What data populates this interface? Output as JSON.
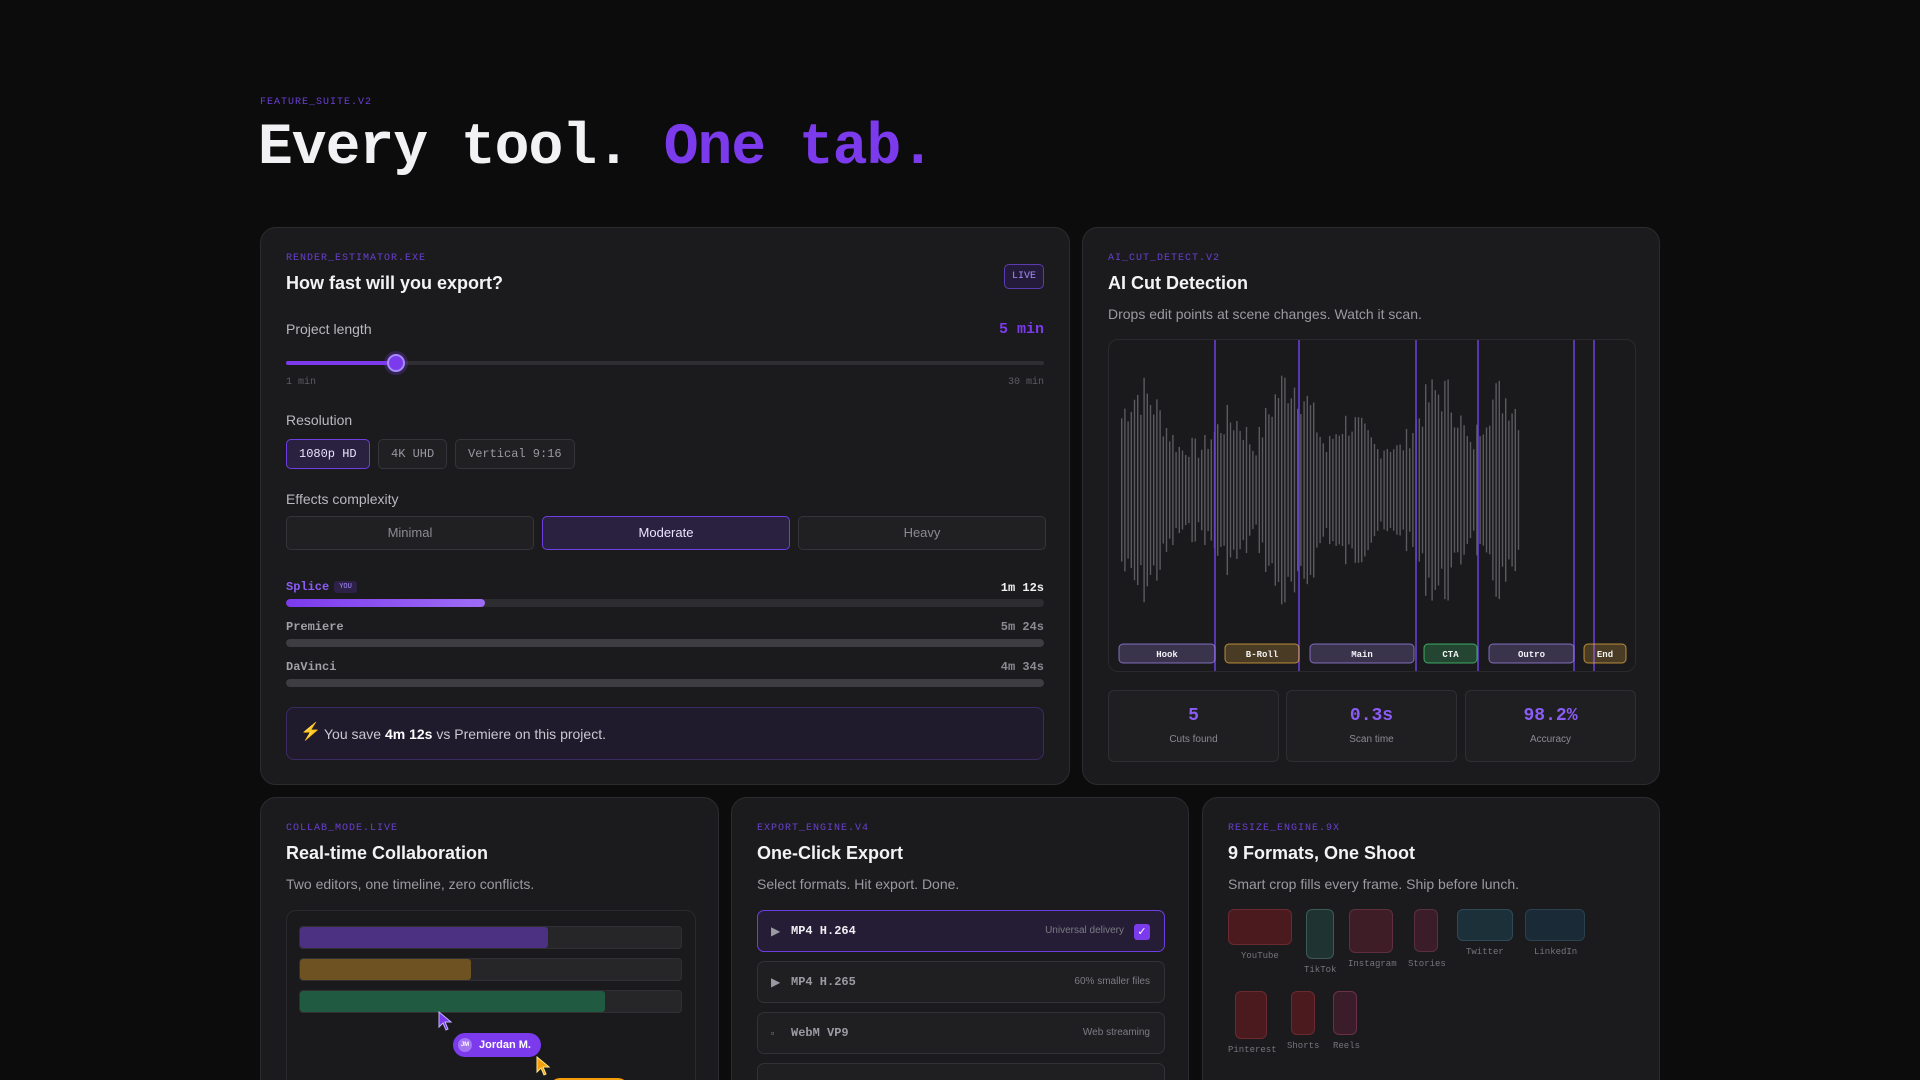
{
  "header": {
    "eyebrow": "FEATURE_SUITE.V2",
    "title_main": "Every tool.",
    "title_accent": "One tab."
  },
  "render": {
    "tag": "RENDER_ESTIMATOR.EXE",
    "title": "How fast will you export?",
    "badge": "LIVE",
    "length_label": "Project length",
    "length_value": "5 min",
    "slider_min": "1 min",
    "slider_max": "30 min",
    "slider_fraction": 0.145,
    "resolution_label": "Resolution",
    "resolutions": [
      "1080p HD",
      "4K UHD",
      "Vertical 9:16"
    ],
    "resolution_selected": "1080p HD",
    "effects_label": "Effects complexity",
    "effects": [
      "Minimal",
      "Moderate",
      "Heavy"
    ],
    "effects_selected": "Moderate",
    "results": [
      {
        "name": "Splice",
        "badge": "YOU",
        "time": "1m 12s",
        "fraction": 0.263
      },
      {
        "name": "Premiere",
        "time": "5m 24s",
        "fraction": 1.0
      },
      {
        "name": "DaVinci",
        "time": "4m 34s",
        "fraction": 1.0
      }
    ],
    "save": {
      "prefix": "You save",
      "amount": "4m 12s",
      "suffix": "vs Premiere on this project."
    }
  },
  "ai_cut": {
    "tag": "AI_CUT_DETECT.V2",
    "title": "AI Cut Detection",
    "subtitle": "Drops edit points at scene changes. Watch it scan.",
    "segments": [
      {
        "label": "Hook",
        "color": "#a78bfa"
      },
      {
        "label": "B-Roll",
        "color": "#f5b544"
      },
      {
        "label": "Main",
        "color": "#a78bfa"
      },
      {
        "label": "CTA",
        "color": "#4ade80"
      },
      {
        "label": "Outro",
        "color": "#a78bfa"
      },
      {
        "label": "End",
        "color": "#f5b544"
      }
    ],
    "stats": [
      {
        "value": "5",
        "label": "Cuts found"
      },
      {
        "value": "0.3s",
        "label": "Scan time"
      },
      {
        "value": "98.2%",
        "label": "Accuracy"
      }
    ]
  },
  "collab": {
    "tag": "COLLAB_MODE.LIVE",
    "title": "Real-time Collaboration",
    "subtitle": "Two editors, one timeline, zero conflicts.",
    "tracks": [
      {
        "fraction": 0.65,
        "color": "#4c3182"
      },
      {
        "fraction": 0.45,
        "color": "#6e5221"
      },
      {
        "fraction": 0.8,
        "color": "#1f5a41"
      }
    ],
    "user": {
      "initials": "JM",
      "name": "Jordan M."
    }
  },
  "export": {
    "tag": "EXPORT_ENGINE.V4",
    "title": "One-Click Export",
    "subtitle": "Select formats. Hit export. Done.",
    "formats": [
      {
        "name": "MP4 H.264",
        "desc": "Universal delivery",
        "selected": true,
        "icon": "play-icon"
      },
      {
        "name": "MP4 H.265",
        "desc": "60% smaller files",
        "selected": false,
        "icon": "play-icon"
      },
      {
        "name": "WebM VP9",
        "desc": "Web streaming",
        "selected": false,
        "icon": "square-icon"
      }
    ]
  },
  "resize": {
    "tag": "RESIZE_ENGINE.9X",
    "title": "9 Formats, One Shoot",
    "subtitle": "Smart crop fills every frame. Ship before lunch.",
    "frames": [
      "YouTube",
      "TikTok",
      "Instagram",
      "Stories",
      "Twitter",
      "LinkedIn",
      "Pinterest",
      "Shorts",
      "Reels"
    ]
  },
  "colors": {
    "accent": "#7c3aed",
    "background": "#0c0c0d",
    "card": "#1b1b1d"
  }
}
